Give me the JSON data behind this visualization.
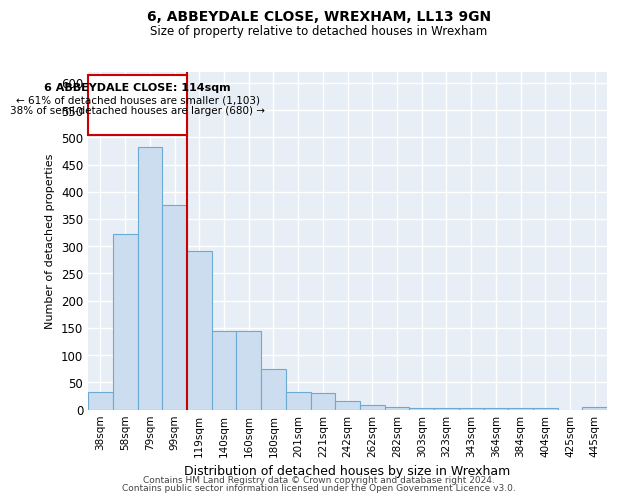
{
  "title": "6, ABBEYDALE CLOSE, WREXHAM, LL13 9GN",
  "subtitle": "Size of property relative to detached houses in Wrexham",
  "xlabel": "Distribution of detached houses by size in Wrexham",
  "ylabel": "Number of detached properties",
  "categories": [
    "38sqm",
    "58sqm",
    "79sqm",
    "99sqm",
    "119sqm",
    "140sqm",
    "160sqm",
    "180sqm",
    "201sqm",
    "221sqm",
    "242sqm",
    "262sqm",
    "282sqm",
    "303sqm",
    "323sqm",
    "343sqm",
    "364sqm",
    "384sqm",
    "404sqm",
    "425sqm",
    "445sqm"
  ],
  "values": [
    32,
    322,
    483,
    375,
    291,
    145,
    145,
    75,
    32,
    30,
    16,
    8,
    4,
    3,
    3,
    3,
    3,
    3,
    3,
    0,
    5
  ],
  "bar_color": "#ccddf0",
  "bar_edge_color": "#6aaad4",
  "annotation_title": "6 ABBEYDALE CLOSE: 114sqm",
  "annotation_line1": "← 61% of detached houses are smaller (1,103)",
  "annotation_line2": "38% of semi-detached houses are larger (680) →",
  "annotation_box_color": "#cc0000",
  "footer_line1": "Contains HM Land Registry data © Crown copyright and database right 2024.",
  "footer_line2": "Contains public sector information licensed under the Open Government Licence v3.0.",
  "ylim": [
    0,
    620
  ],
  "yticks": [
    0,
    50,
    100,
    150,
    200,
    250,
    300,
    350,
    400,
    450,
    500,
    550,
    600
  ],
  "vline_bin_index": 4,
  "background_color": "#e8eef5",
  "white": "#ffffff"
}
